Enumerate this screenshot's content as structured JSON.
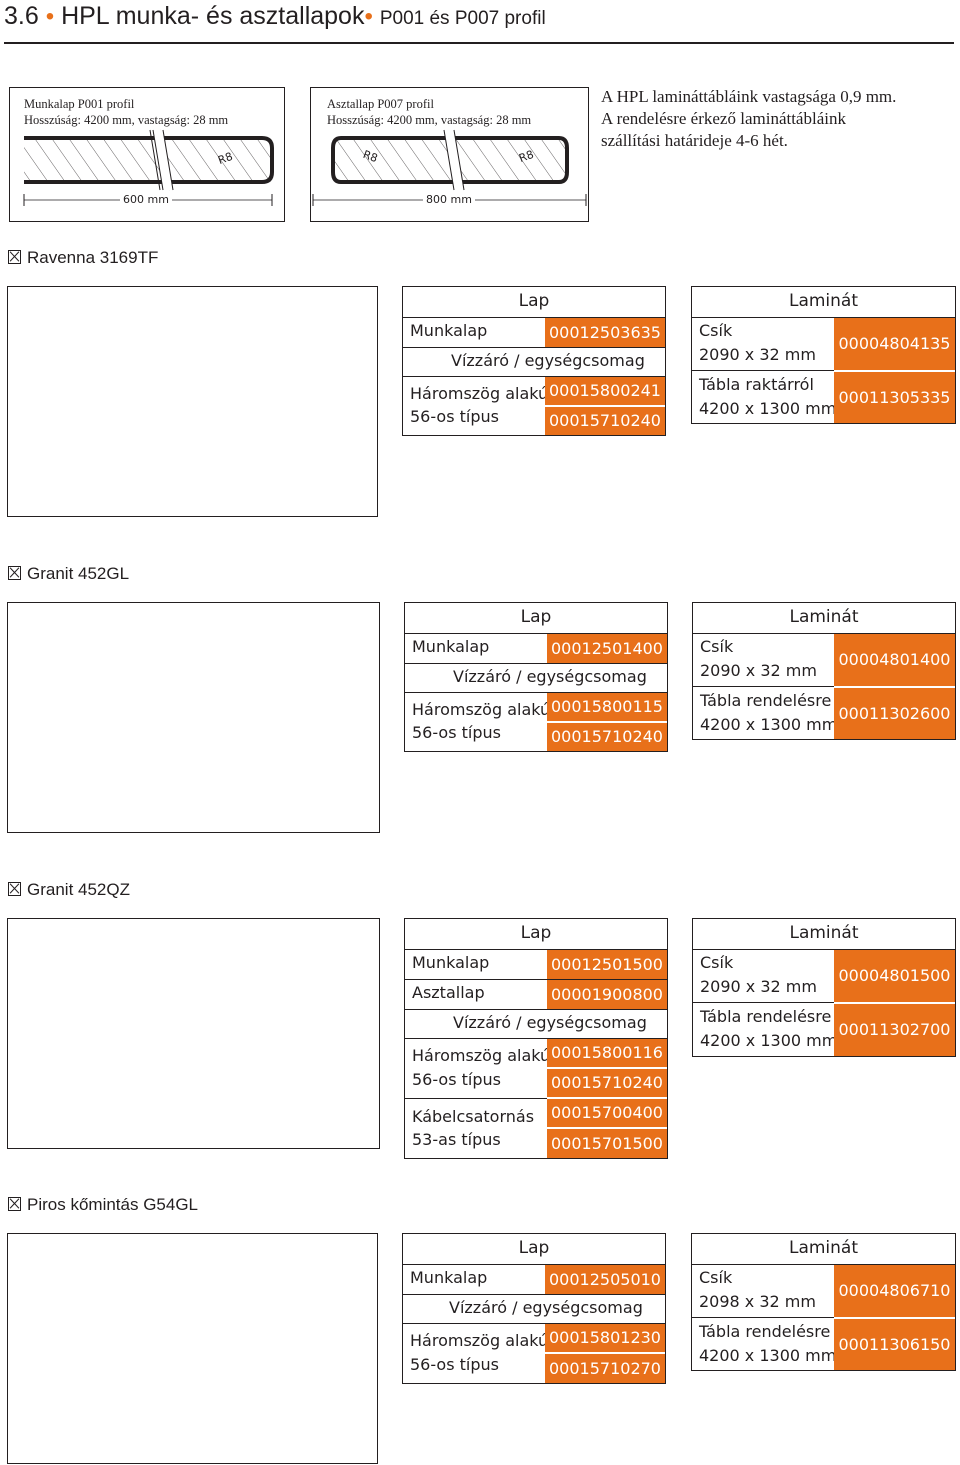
{
  "header": {
    "number": "3.6",
    "title": "HPL munka- és asztallapok",
    "subtitle": "P001 és P007 profil"
  },
  "profiles": {
    "p001": {
      "line1": "Munkalap P001 profil",
      "line2": "Hosszúság: 4200 mm, vastagság: 28 mm",
      "radius": "R8",
      "width": "600 mm"
    },
    "p007": {
      "line1": "Asztallap P007 profil",
      "line2": "Hosszúság: 4200 mm, vastagság: 28 mm",
      "radius_left": "R8",
      "radius_right": "R8",
      "width": "800 mm"
    },
    "note": {
      "line1": "A HPL laminát­tábláink vastagsága 0,9 mm.",
      "line2": "A rendelésre érkező laminát­tábláink",
      "line3": "szállítási határideje 4-6 hét."
    }
  },
  "sections": [
    {
      "title": "Ravenna 3169TF",
      "lap": {
        "header": "Lap",
        "munkalap_label": "Munkalap",
        "munkalap_code": "00012503635",
        "vizzaro": "Vízzáró / egységcsomag",
        "haromszog_label": "Háromszög alakú",
        "tipus_label": "56-os típus",
        "code1": "00015800241",
        "code2": "00015710240"
      },
      "laminat": {
        "header": "Laminát",
        "csik_label": "Csík",
        "csik_size": "2090 x 32 mm",
        "csik_code": "00004804135",
        "tabla_label": "Tábla raktárról",
        "tabla_size": "4200 x 1300 mm",
        "tabla_code": "00011305335"
      }
    },
    {
      "title": "Granit 452GL",
      "lap": {
        "header": "Lap",
        "munkalap_label": "Munkalap",
        "munkalap_code": "00012501400",
        "vizzaro": "Vízzáró / egységcsomag",
        "haromszog_label": "Háromszög alakú",
        "tipus_label": "56-os típus",
        "code1": "00015800115",
        "code2": "00015710240"
      },
      "laminat": {
        "header": "Laminát",
        "csik_label": "Csík",
        "csik_size": "2090 x 32 mm",
        "csik_code": "00004801400",
        "tabla_label": "Tábla rendelésre",
        "tabla_size": "4200 x 1300 mm",
        "tabla_code": "00011302600"
      }
    },
    {
      "title": "Granit 452QZ",
      "lap": {
        "header": "Lap",
        "munkalap_label": "Munkalap",
        "munkalap_code": "00012501500",
        "asztallap_label": "Asztallap",
        "asztallap_code": "00001900800",
        "vizzaro": "Vízzáró / egységcsomag",
        "haromszog_label": "Háromszög alakú",
        "tipus_label": "56-os típus",
        "code1": "00015800116",
        "code2": "00015710240",
        "kabel_label": "Kábelcsatornás",
        "kabel_tipus": "53-as típus",
        "code3": "00015700400",
        "code4": "00015701500"
      },
      "laminat": {
        "header": "Laminát",
        "csik_label": "Csík",
        "csik_size": "2090 x 32 mm",
        "csik_code": "00004801500",
        "tabla_label": "Tábla rendelésre",
        "tabla_size": "4200 x 1300 mm",
        "tabla_code": "00011302700"
      }
    },
    {
      "title": "Piros kőmintás G54GL",
      "lap": {
        "header": "Lap",
        "munkalap_label": "Munkalap",
        "munkalap_code": "00012505010",
        "vizzaro": "Vízzáró / egységcsomag",
        "haromszog_label": "Háromszög alakú",
        "tipus_label": "56-os típus",
        "code1": "00015801230",
        "code2": "00015710270"
      },
      "laminat": {
        "header": "Laminát",
        "csik_label": "Csík",
        "csik_size": "2098 x 32 mm",
        "csik_code": "00004806710",
        "tabla_label": "Tábla rendelésre",
        "tabla_size": "4200 x 1300 mm",
        "tabla_code": "00011306150"
      }
    }
  ],
  "colors": {
    "accent": "#e8701a",
    "text": "#231f20"
  }
}
